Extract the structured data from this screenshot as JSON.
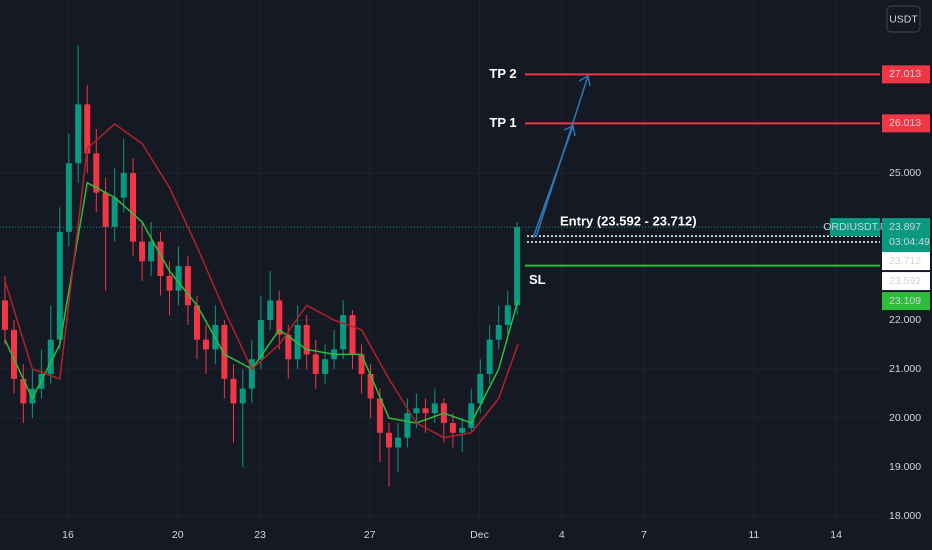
{
  "chart_data": {
    "type": "candlestick",
    "currency": "USDT",
    "symbol": "ORDIUSDT.P",
    "countdown": "03:04:49",
    "last_price": 23.897,
    "colors": {
      "up": "#089981",
      "down": "#f23645",
      "last": "#089981"
    },
    "xlim": [
      13.52,
      45.6
    ],
    "ylim": [
      17.92,
      28.53
    ],
    "xticks": [
      16,
      20,
      23,
      27,
      {
        "value": 31,
        "label": "Dec"
      },
      {
        "value": 34,
        "label": "4"
      },
      {
        "value": 37,
        "label": "7"
      },
      {
        "value": 41,
        "label": "11"
      },
      {
        "value": 44,
        "label": "14"
      }
    ],
    "yticks": [
      {
        "value": 18,
        "label": "18.000"
      },
      {
        "value": 19,
        "label": "19.000"
      },
      {
        "value": 20,
        "label": "20.000"
      },
      {
        "value": 21,
        "label": "21.000"
      },
      {
        "value": 22,
        "label": "22.000"
      },
      {
        "value": 25,
        "label": "25.000"
      }
    ],
    "x": [
      13.7,
      14.03,
      14.37,
      14.7,
      15.03,
      15.37,
      15.7,
      16.03,
      16.37,
      16.7,
      17.03,
      17.37,
      17.7,
      18.03,
      18.37,
      18.7,
      19.03,
      19.37,
      19.7,
      20.03,
      20.37,
      20.7,
      21.03,
      21.37,
      21.7,
      22.03,
      22.37,
      22.7,
      23.03,
      23.37,
      23.7,
      24.03,
      24.37,
      24.7,
      25.03,
      25.37,
      25.7,
      26.03,
      26.37,
      26.7,
      27.03,
      27.37,
      27.7,
      28.03,
      28.37,
      28.7,
      29.03,
      29.37,
      29.7,
      30.03,
      30.37,
      30.7,
      31.03,
      31.37,
      31.7,
      32.03,
      32.37
    ],
    "candles": [
      [
        22.4,
        22.9,
        21.5,
        21.8
      ],
      [
        21.8,
        22.0,
        20.5,
        20.8
      ],
      [
        20.8,
        21.1,
        19.9,
        20.3
      ],
      [
        20.3,
        21.0,
        20.0,
        20.6
      ],
      [
        20.6,
        21.4,
        20.4,
        20.9
      ],
      [
        20.9,
        22.3,
        20.7,
        21.6
      ],
      [
        21.6,
        24.3,
        21.4,
        23.8
      ],
      [
        23.8,
        25.8,
        23.5,
        25.2
      ],
      [
        25.2,
        27.6,
        24.8,
        26.4
      ],
      [
        26.4,
        26.8,
        25.0,
        25.4
      ],
      [
        25.4,
        25.9,
        24.2,
        24.6
      ],
      [
        24.6,
        24.9,
        22.6,
        23.9
      ],
      [
        23.9,
        25.1,
        23.6,
        24.5
      ],
      [
        24.5,
        25.7,
        24.2,
        25.0
      ],
      [
        25.0,
        25.3,
        23.3,
        23.6
      ],
      [
        23.6,
        24.0,
        22.8,
        23.2
      ],
      [
        23.2,
        24.0,
        22.9,
        23.6
      ],
      [
        23.6,
        23.8,
        22.5,
        22.9
      ],
      [
        22.9,
        23.2,
        22.1,
        22.6
      ],
      [
        22.6,
        23.5,
        22.3,
        23.1
      ],
      [
        23.1,
        23.3,
        21.9,
        22.3
      ],
      [
        22.3,
        22.5,
        21.2,
        21.6
      ],
      [
        21.6,
        21.9,
        20.9,
        21.4
      ],
      [
        21.4,
        22.3,
        21.1,
        21.9
      ],
      [
        21.9,
        22.0,
        20.4,
        20.8
      ],
      [
        20.8,
        21.1,
        19.5,
        20.3
      ],
      [
        20.3,
        21.0,
        19.0,
        20.6
      ],
      [
        20.6,
        21.6,
        20.3,
        21.2
      ],
      [
        21.2,
        22.5,
        21.0,
        22.0
      ],
      [
        22.0,
        23.0,
        21.8,
        22.4
      ],
      [
        22.4,
        22.6,
        21.4,
        21.7
      ],
      [
        21.7,
        21.9,
        20.8,
        21.2
      ],
      [
        21.2,
        22.3,
        21.0,
        21.9
      ],
      [
        21.9,
        22.1,
        21.0,
        21.3
      ],
      [
        21.3,
        21.6,
        20.6,
        20.9
      ],
      [
        20.9,
        21.5,
        20.7,
        21.2
      ],
      [
        21.2,
        21.8,
        21.0,
        21.4
      ],
      [
        21.4,
        22.4,
        21.2,
        22.1
      ],
      [
        22.1,
        22.2,
        21.0,
        21.3
      ],
      [
        21.3,
        21.5,
        20.5,
        20.9
      ],
      [
        20.9,
        21.1,
        20.0,
        20.4
      ],
      [
        20.4,
        20.6,
        19.1,
        19.7
      ],
      [
        19.7,
        19.9,
        18.6,
        19.4
      ],
      [
        19.4,
        19.9,
        18.9,
        19.6
      ],
      [
        19.6,
        20.4,
        19.4,
        20.1
      ],
      [
        20.1,
        20.5,
        19.8,
        20.2
      ],
      [
        20.2,
        20.4,
        19.7,
        20.1
      ],
      [
        20.1,
        20.6,
        19.9,
        20.3
      ],
      [
        20.3,
        20.4,
        19.5,
        19.9
      ],
      [
        19.9,
        20.1,
        19.4,
        19.7
      ],
      [
        19.7,
        20.0,
        19.3,
        19.8
      ],
      [
        19.8,
        20.6,
        19.7,
        20.3
      ],
      [
        20.3,
        21.2,
        20.1,
        20.9
      ],
      [
        20.9,
        21.9,
        20.7,
        21.6
      ],
      [
        21.6,
        22.3,
        21.4,
        21.9
      ],
      [
        21.9,
        22.6,
        21.7,
        22.3
      ],
      [
        22.3,
        24.0,
        22.1,
        23.897
      ]
    ],
    "lines": [
      {
        "color": "#2ebd3a",
        "x": [
          13.7,
          14.7,
          15.7,
          16.7,
          17.7,
          18.7,
          19.7,
          20.7,
          21.7,
          22.7,
          23.7,
          24.7,
          25.7,
          26.7,
          27.7,
          28.7,
          29.7,
          30.7,
          31.7,
          32.4
        ],
        "values": [
          21.6,
          20.4,
          21.5,
          24.8,
          24.5,
          24.0,
          23.0,
          22.3,
          21.3,
          21.0,
          21.8,
          21.4,
          21.3,
          21.3,
          20.0,
          19.9,
          20.1,
          19.9,
          21.0,
          22.4
        ]
      },
      {
        "color": "#b2212a",
        "x": [
          13.7,
          14.7,
          15.7,
          16.7,
          17.7,
          18.7,
          19.7,
          20.7,
          21.7,
          22.7,
          23.7,
          24.7,
          25.7,
          26.7,
          27.7,
          28.7,
          29.7,
          30.7,
          31.7,
          32.4
        ],
        "values": [
          22.8,
          21.0,
          20.8,
          25.5,
          26.0,
          25.6,
          24.7,
          23.5,
          22.2,
          21.0,
          21.5,
          22.3,
          22.0,
          21.8,
          20.8,
          19.9,
          19.6,
          19.7,
          20.4,
          21.5
        ]
      }
    ],
    "levels": [
      {
        "label": "TP 2",
        "value": 27.013,
        "color": "#f23645"
      },
      {
        "label": "TP 1",
        "value": 26.013,
        "color": "#f23645"
      }
    ],
    "entry": {
      "label": "Entry (23.592 - 23.712)",
      "high": 23.712,
      "low": 23.592
    },
    "stop": {
      "label": "SL",
      "value": 23.109,
      "color": "#2ebd3a"
    }
  }
}
